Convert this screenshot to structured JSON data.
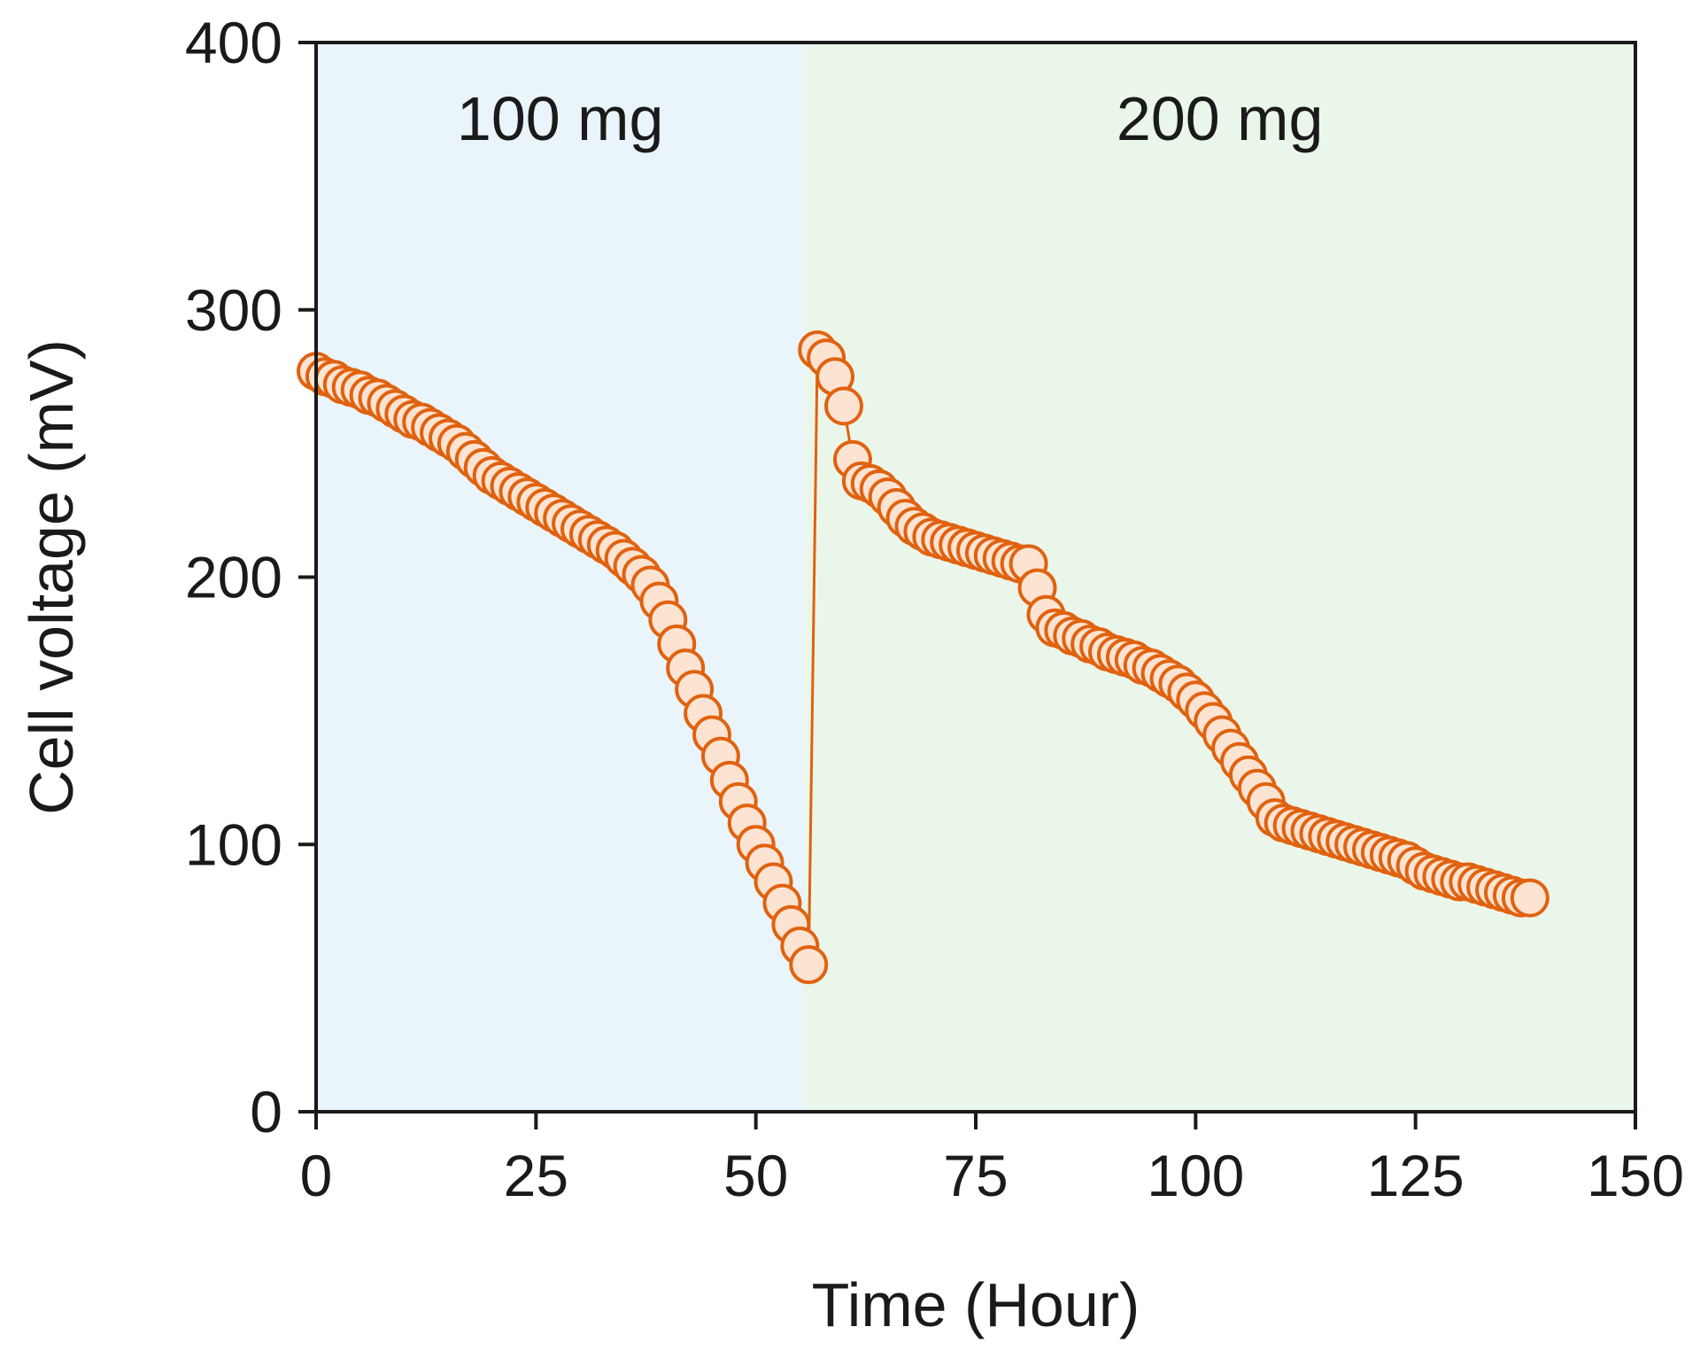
{
  "chart_data": {
    "type": "scatter",
    "title": "",
    "xlabel": "Time (Hour)",
    "ylabel": "Cell voltage (mV)",
    "xlim": [
      0,
      150
    ],
    "ylim": [
      0,
      400
    ],
    "xticks": [
      0,
      25,
      50,
      75,
      100,
      125,
      150
    ],
    "yticks": [
      0,
      100,
      200,
      300,
      400
    ],
    "grid": false,
    "legend": "none",
    "regions": [
      {
        "label": "100 mg",
        "x_start": 0,
        "x_end": 55.5,
        "color": "#e9f4fb"
      },
      {
        "label": "200 mg",
        "x_start": 55.5,
        "x_end": 150,
        "color": "#ebf6ea"
      }
    ],
    "series": [
      {
        "name": "Cell voltage",
        "marker_edge": "#e0620f",
        "marker_fill": "#fde3d2",
        "line_color": "#e0620f",
        "x": [
          0,
          1,
          2,
          3,
          4,
          5,
          6,
          7,
          8,
          9,
          10,
          11,
          12,
          13,
          14,
          15,
          16,
          17,
          18,
          19,
          20,
          21,
          22,
          23,
          24,
          25,
          26,
          27,
          28,
          29,
          30,
          31,
          32,
          33,
          34,
          35,
          36,
          37,
          38,
          39,
          40,
          41,
          42,
          43,
          44,
          45,
          46,
          47,
          48,
          49,
          50,
          51,
          52,
          53,
          54,
          55,
          56,
          57,
          58,
          59,
          60,
          61,
          62,
          63,
          64,
          65,
          66,
          67,
          68,
          69,
          70,
          71,
          72,
          73,
          74,
          75,
          76,
          77,
          78,
          79,
          80,
          81,
          82,
          83,
          84,
          85,
          86,
          87,
          88,
          89,
          90,
          91,
          92,
          93,
          94,
          95,
          96,
          97,
          98,
          99,
          100,
          101,
          102,
          103,
          104,
          105,
          106,
          107,
          108,
          109,
          110,
          111,
          112,
          113,
          114,
          115,
          116,
          117,
          118,
          119,
          120,
          121,
          122,
          123,
          124,
          125,
          126,
          127,
          128,
          129,
          130,
          131,
          132,
          133,
          134,
          135,
          136,
          137,
          138
        ],
        "y": [
          277,
          275,
          274,
          272,
          271,
          270,
          268,
          267,
          265,
          263,
          261,
          259,
          258,
          256,
          254,
          252,
          250,
          247,
          244,
          241,
          238,
          236,
          234,
          232,
          230,
          228,
          226,
          224,
          222,
          220,
          218,
          216,
          214,
          212,
          210,
          207,
          204,
          201,
          197,
          191,
          184,
          175,
          166,
          158,
          149,
          141,
          133,
          124,
          116,
          108,
          100,
          93,
          86,
          78,
          70,
          62,
          55,
          285,
          282,
          275,
          264,
          244,
          236,
          235,
          233,
          230,
          226,
          222,
          219,
          217,
          215,
          214,
          213,
          212,
          211,
          210,
          209,
          208,
          207,
          206,
          205,
          205,
          196,
          186,
          181,
          180,
          178,
          177,
          175,
          174,
          172,
          171,
          170,
          169,
          167,
          166,
          164,
          162,
          160,
          157,
          154,
          150,
          146,
          141,
          136,
          131,
          126,
          121,
          116,
          110,
          108,
          107,
          106,
          105,
          104,
          103,
          102,
          101,
          100,
          99,
          98,
          97,
          96,
          95,
          94,
          92,
          90,
          89,
          88,
          87,
          86,
          86,
          85,
          84,
          83,
          82,
          81,
          80,
          80
        ]
      }
    ]
  }
}
